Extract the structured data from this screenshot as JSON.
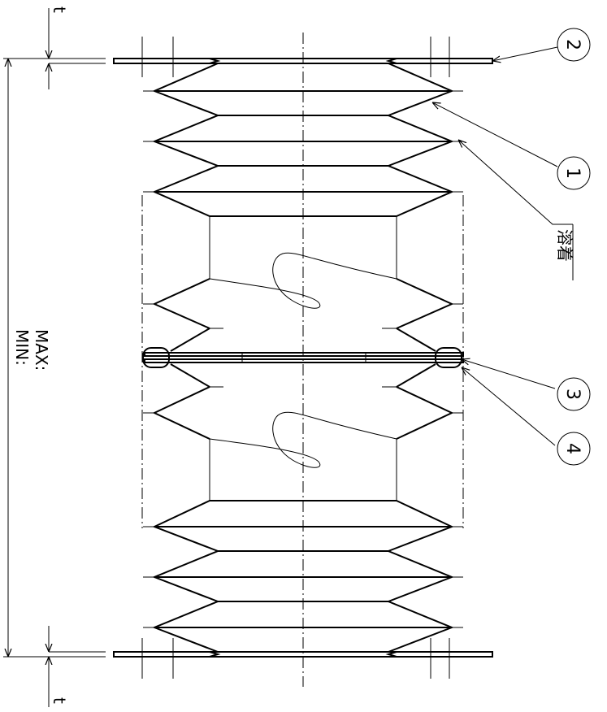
{
  "drawing": {
    "dimension": {
      "max_label": "MAX:",
      "min_label": "MIN:",
      "t_label": "t"
    },
    "callouts": [
      {
        "id": "part-1",
        "number": "1"
      },
      {
        "id": "part-2",
        "number": "2"
      },
      {
        "id": "part-3",
        "number": "3"
      },
      {
        "id": "part-4",
        "number": "4"
      }
    ],
    "weld_note": "溶着"
  }
}
